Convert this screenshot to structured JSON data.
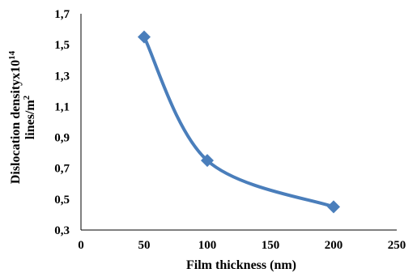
{
  "chart_data": {
    "type": "line",
    "title": "",
    "xlabel": "Film thickness (nm)",
    "ylabel_line1": "Dislocation densityx10",
    "ylabel_line1_sup": "14",
    "ylabel_line2": "lines/m",
    "ylabel_line2_sup": "2",
    "xlim": [
      0,
      250
    ],
    "ylim": [
      0.3,
      1.7
    ],
    "x_ticks": [
      0,
      50,
      100,
      150,
      200,
      250
    ],
    "x_tick_labels": [
      "0",
      "50",
      "100",
      "150",
      "200",
      "250"
    ],
    "y_ticks": [
      0.3,
      0.5,
      0.7,
      0.9,
      1.1,
      1.3,
      1.5,
      1.7
    ],
    "y_tick_labels": [
      "0,3",
      "0,5",
      "0,7",
      "0,9",
      "1,1",
      "1,3",
      "1,5",
      "1,7"
    ],
    "grid": false,
    "smooth": true,
    "marker": "diamond",
    "series": [
      {
        "x": [
          50,
          100,
          200
        ],
        "values": [
          1.55,
          0.75,
          0.45
        ]
      }
    ],
    "colors": {
      "series": "#4a7ebb",
      "axis": "#000000"
    }
  }
}
